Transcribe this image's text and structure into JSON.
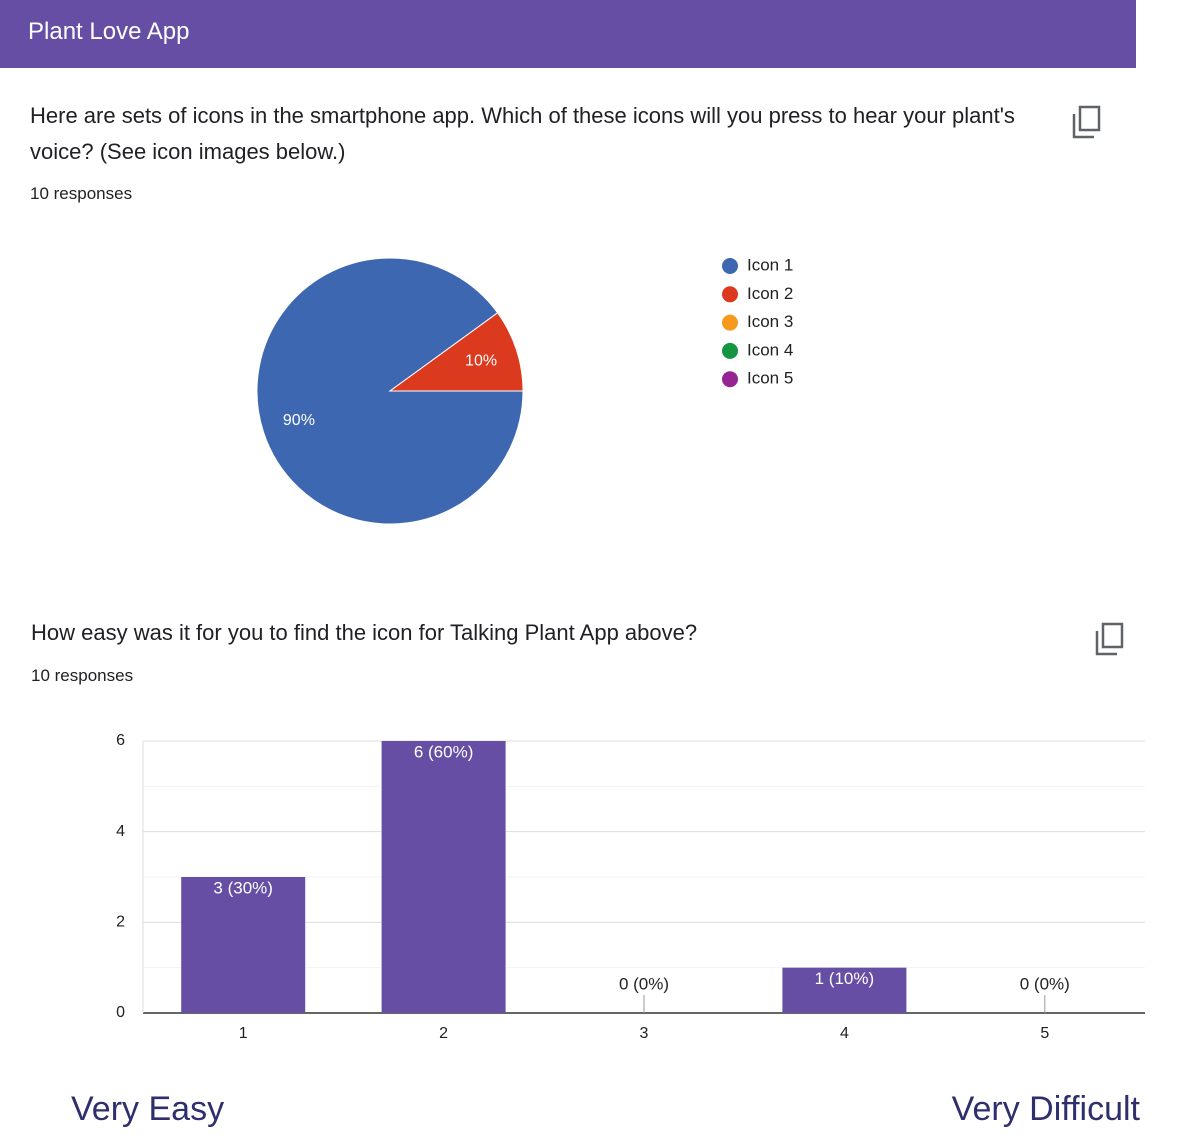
{
  "header": {
    "title": "Plant Love App"
  },
  "questions": [
    {
      "text": "Here are sets of icons in the smartphone app. Which of these icons will you press to hear your plant's voice? (See icon images below.)",
      "responses": "10 responses"
    },
    {
      "text": "How easy was it for you to find the icon for Talking Plant App above?",
      "responses": "10 responses"
    }
  ],
  "chart_data": [
    {
      "type": "pie",
      "categories": [
        "Icon 1",
        "Icon 2",
        "Icon 3",
        "Icon 4",
        "Icon 5"
      ],
      "values": [
        90,
        10,
        0,
        0,
        0
      ],
      "value_labels": [
        "90%",
        "10%",
        null,
        null,
        null
      ],
      "colors": [
        "#3d68b1",
        "#db3a1e",
        "#f7991c",
        "#14953f",
        "#962593"
      ],
      "legend": "right"
    },
    {
      "type": "bar",
      "categories": [
        "1",
        "2",
        "3",
        "4",
        "5"
      ],
      "values": [
        3,
        6,
        0,
        1,
        0
      ],
      "value_labels": [
        "3 (30%)",
        "6 (60%)",
        "0 (0%)",
        "1 (10%)",
        "0 (0%)"
      ],
      "color": "#654ea3",
      "ylim": [
        0,
        6
      ],
      "yticks": [
        0,
        2,
        4,
        6
      ],
      "minor_yticks": [
        1,
        3,
        5
      ],
      "grid": true
    }
  ],
  "scale_labels": {
    "low": "Very Easy",
    "high": "Very Difficult"
  }
}
